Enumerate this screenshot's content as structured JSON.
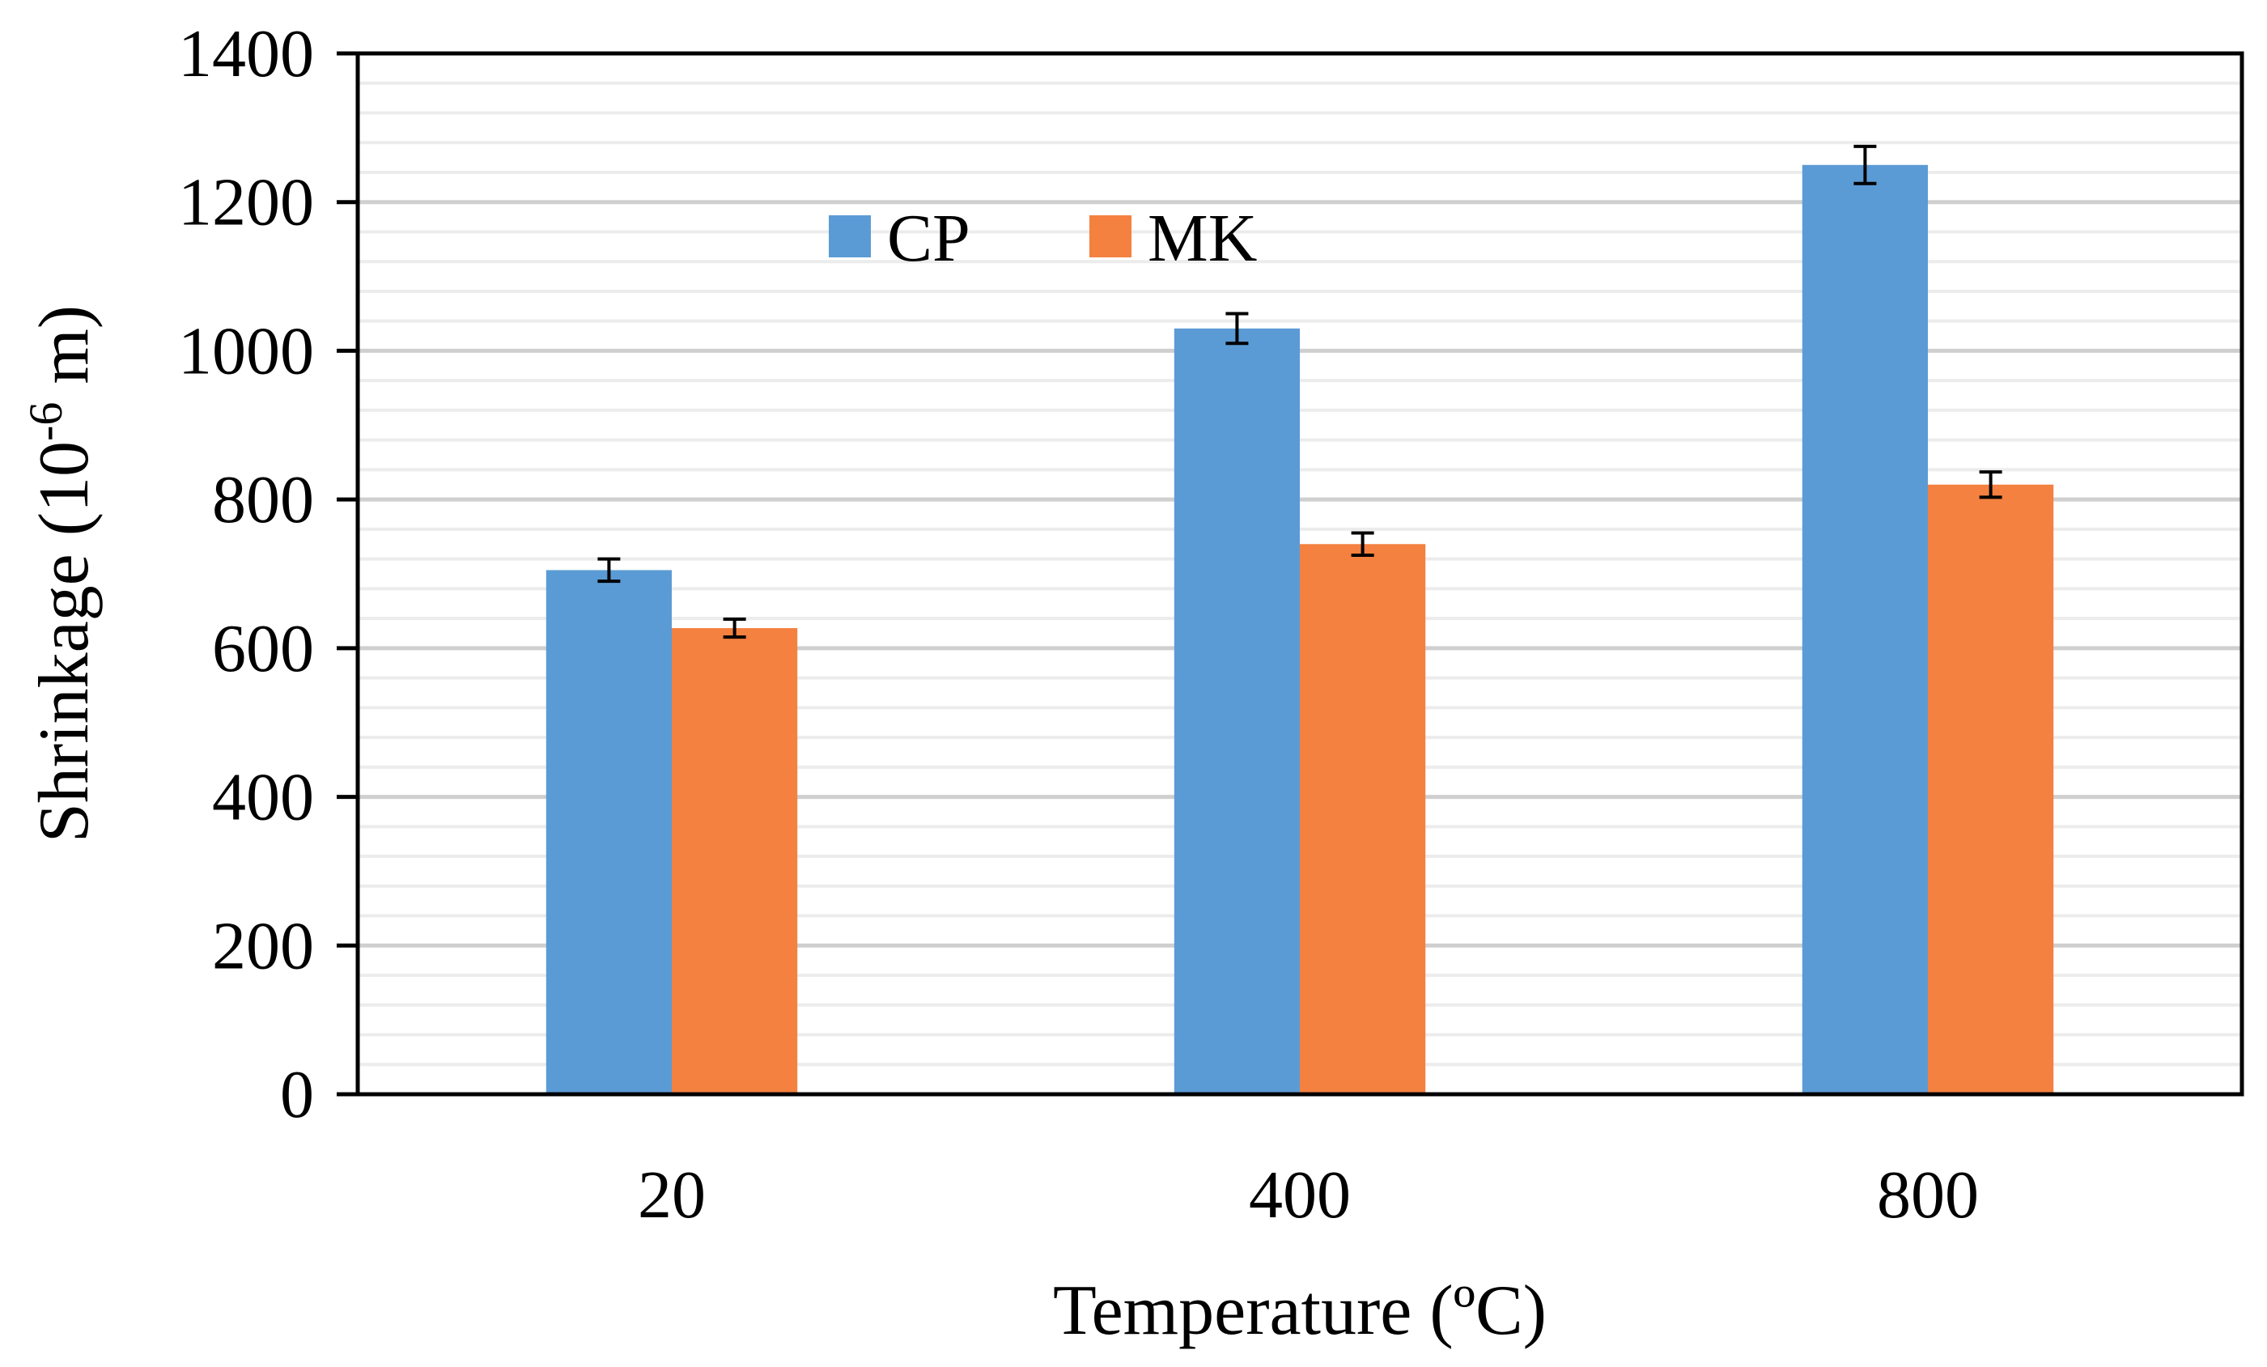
{
  "chart_data": {
    "type": "bar",
    "title": "",
    "xlabel": "Temperature (ºC)",
    "ylabel_main": "Shrinkage (10",
    "ylabel_exp": "-6",
    "ylabel_tail": " m)",
    "categories": [
      "20",
      "400",
      "800"
    ],
    "series": [
      {
        "name": "CP",
        "color": "#5B9BD5",
        "values": [
          705,
          1030,
          1250
        ],
        "errors": [
          15,
          20,
          25
        ]
      },
      {
        "name": "MK",
        "color": "#F4813F",
        "values": [
          627,
          740,
          820
        ],
        "errors": [
          12,
          15,
          17
        ]
      }
    ],
    "ylim": [
      0,
      1400
    ],
    "yticks": [
      0,
      200,
      400,
      600,
      800,
      1000,
      1200,
      1400
    ],
    "minor_step": 40,
    "grid": true,
    "legend_position": "top-center"
  }
}
